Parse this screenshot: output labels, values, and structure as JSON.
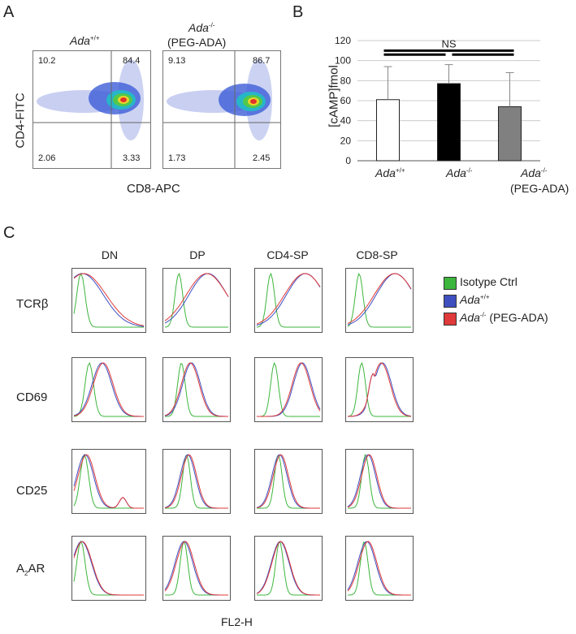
{
  "panels": {
    "A": "A",
    "B": "B",
    "C": "C"
  },
  "panelA": {
    "left_title_base": "Ada",
    "left_title_sup": "+/+",
    "right_title_base": "Ada",
    "right_title_sup": "-/-",
    "right_title_sub": "(PEG-ADA)",
    "y_label": "CD4-FITC",
    "x_label": "CD8-APC",
    "left_quadrants": {
      "ul": "10.2",
      "ur": "84.4",
      "ll": "2.06",
      "lr": "3.33"
    },
    "right_quadrants": {
      "ul": "9.13",
      "ur": "86.7",
      "ll": "1.73",
      "lr": "2.45"
    }
  },
  "chart_data": {
    "type": "bar",
    "categories": [
      "Ada+/+",
      "Ada-/-",
      "Ada-/- (PEG-ADA)"
    ],
    "values": [
      61,
      77,
      54
    ],
    "errors": [
      33,
      19,
      34
    ],
    "colors": [
      "#ffffff",
      "#000000",
      "#808080"
    ],
    "ylabel": "[cAMP]fmol",
    "ylim": [
      0,
      120
    ],
    "yticks": [
      "0",
      "20",
      "40",
      "60",
      "80",
      "100",
      "120"
    ],
    "annotation": "NS",
    "cat_labels": [
      {
        "base": "Ada",
        "sup": "+/+",
        "sub": ""
      },
      {
        "base": "Ada",
        "sup": "-/-",
        "sub": ""
      },
      {
        "base": "Ada",
        "sup": "-/-",
        "sub": "(PEG-ADA)"
      }
    ]
  },
  "panelC": {
    "columns": [
      "DN",
      "DP",
      "CD4-SP",
      "CD8-SP"
    ],
    "rows": [
      "TCRβ",
      "CD69",
      "CD25"
    ],
    "row4_base": "A",
    "row4_sub": "2",
    "row4_tail": "AR",
    "x_label": "FL2-H",
    "legend": [
      {
        "text": "Isotype Ctrl",
        "color": "#3cb53c"
      },
      {
        "base": "Ada",
        "sup": "+/+",
        "color": "#3f4fc0"
      },
      {
        "base": "Ada",
        "sup": "-/-",
        "tail": " (PEG-ADA)",
        "color": "#e03a3a"
      }
    ]
  }
}
